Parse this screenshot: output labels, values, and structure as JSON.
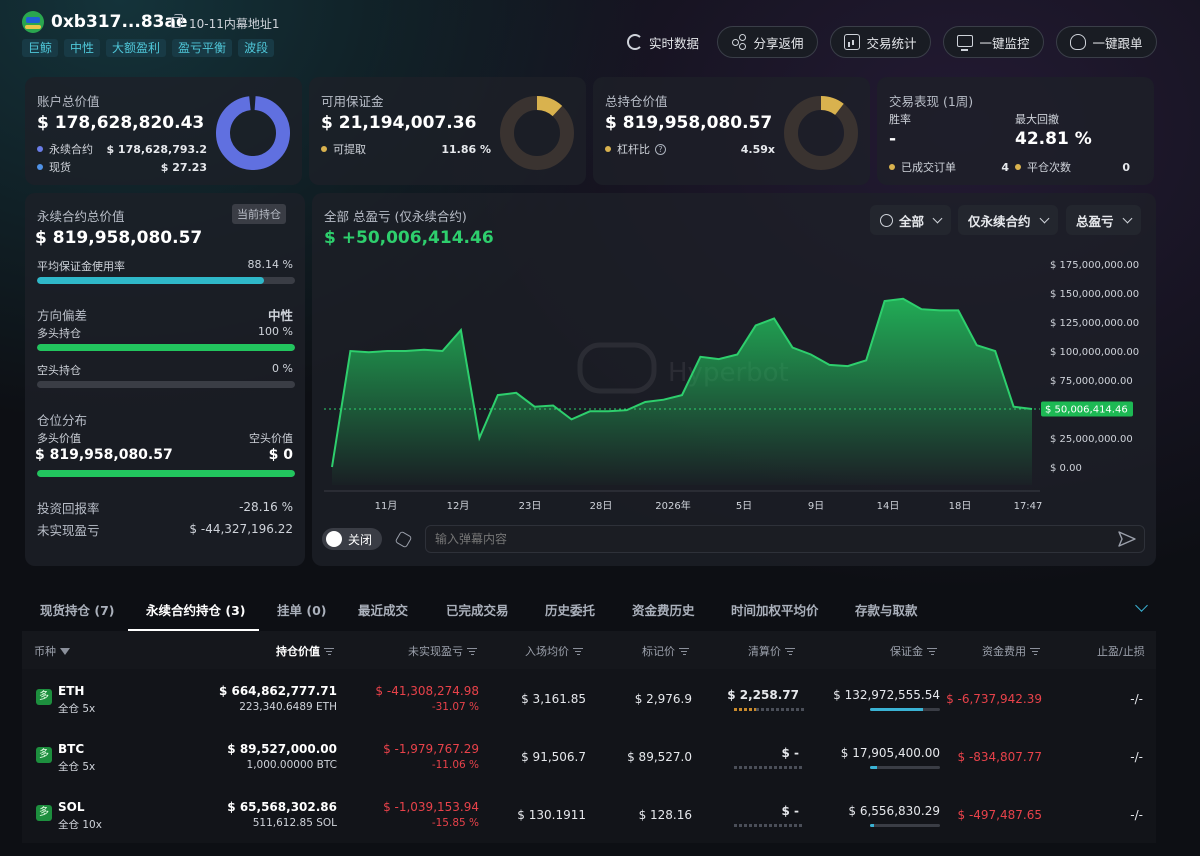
{
  "header": {
    "address": "0xb317...83ae",
    "note": "10-11内幕地址1",
    "tags": [
      "巨鲸",
      "中性",
      "大额盈利",
      "盈亏平衡",
      "波段"
    ],
    "buttons": {
      "realtime": "实时数据",
      "share": "分享返佣",
      "stats": "交易统计",
      "monitor": "一键监控",
      "copy_trade": "一键跟单"
    }
  },
  "cards": {
    "account": {
      "title": "账户总价值",
      "value": "$ 178,628,820.43",
      "rows": [
        {
          "label": "永续合约",
          "value": "$ 178,628,793.2"
        },
        {
          "label": "现货",
          "value": "$ 27.23"
        }
      ]
    },
    "margin": {
      "title": "可用保证金",
      "value": "$ 21,194,007.36",
      "row_label": "可提取",
      "row_value": "11.86 %",
      "ratio": 0.1186
    },
    "position": {
      "title": "总持仓价值",
      "value": "$ 819,958,080.57",
      "row_label": "杠杆比",
      "row_value": "4.59x",
      "ratio": 0.105
    },
    "performance": {
      "title": "交易表现 (1周)",
      "winrate_label": "胜率",
      "winrate_value": "-",
      "drawdown_label": "最大回撤",
      "drawdown_value": "42.81 %",
      "orders_label": "已成交订单",
      "orders_value": "4",
      "close_label": "平仓次数",
      "close_value": "0"
    }
  },
  "perp_panel": {
    "title": "永续合约总价值",
    "badge": "当前持仓",
    "value": "$ 819,958,080.57",
    "margin_usage_label": "平均保证金使用率",
    "margin_usage_value": "88.14 %",
    "margin_usage_ratio": 0.8814,
    "bias_label": "方向偏差",
    "bias_value": "中性",
    "long_label": "多头持仓",
    "long_value": "100 %",
    "long_ratio": 1.0,
    "short_label": "空头持仓",
    "short_value": "0 %",
    "short_ratio": 0.0,
    "dist_label": "仓位分布",
    "long_value_label": "多头价值",
    "short_value_label": "空头价值",
    "long_amount": "$ 819,958,080.57",
    "short_amount": "$ 0",
    "roi_label": "投资回报率",
    "roi_value": "-28.16 %",
    "upnl_label": "未实现盈亏",
    "upnl_value": "$ -44,327,196.22"
  },
  "chart_panel": {
    "title": "全部 总盈亏 (仅永续合约)",
    "value": "$ +50,006,414.46",
    "filters": [
      "全部",
      "仅永续合约",
      "总盈亏"
    ],
    "watermark": "Hyperbot",
    "toggle_label": "关闭",
    "danmaku_placeholder": "输入弹幕内容"
  },
  "chart_data": {
    "type": "area",
    "title": "全部 总盈亏 (仅永续合约)",
    "y_ticks": [
      "$ 175,000,000.00",
      "$ 150,000,000.00",
      "$ 125,000,000.00",
      "$ 100,000,000.00",
      "$ 75,000,000.00",
      "$ 50,000,000.00",
      "$ 25,000,000.00",
      "$ 0.00"
    ],
    "x_ticks": [
      "11月",
      "12月",
      "23日",
      "28日",
      "2026年",
      "5日",
      "9日",
      "14日",
      "18日",
      "17:47"
    ],
    "ylim": [
      0,
      175000000
    ],
    "current_label": "$ 50,006,414.46",
    "current_value": 50006414.46,
    "color": "#2ecf6d",
    "values": [
      0,
      100000000,
      99000000,
      100000000,
      100000000,
      101000000,
      100000000,
      118000000,
      25000000,
      62000000,
      64000000,
      52000000,
      53000000,
      41000000,
      48000000,
      48000000,
      49000000,
      56000000,
      58000000,
      62000000,
      95000000,
      93000000,
      97000000,
      122000000,
      128000000,
      103000000,
      97000000,
      88000000,
      87000000,
      92000000,
      143000000,
      145000000,
      136000000,
      135000000,
      135000000,
      105000000,
      100000000,
      52000000,
      50006414
    ]
  },
  "tabs": [
    "现货持仓 (7)",
    "永续合约持仓 (3)",
    "挂单 (0)",
    "最近成交",
    "已完成交易",
    "历史委托",
    "资金费历史",
    "时间加权平均价",
    "存款与取款"
  ],
  "table": {
    "columns": [
      "币种",
      "持仓价值",
      "未实现盈亏",
      "入场均价",
      "标记价",
      "清算价",
      "保证金",
      "资金费用",
      "止盈/止损"
    ],
    "side_label": "多",
    "rows": [
      {
        "coin": "ETH",
        "mode": "全仓 5x",
        "value": "$ 664,862,777.71",
        "size": "223,340.6489 ETH",
        "pnl": "$ -41,308,274.98",
        "pnl_pct": "-31.07 %",
        "entry": "$ 3,161.85",
        "mark": "$ 2,976.9",
        "liq": "$ 2,258.77",
        "margin": "$ 132,972,555.54",
        "margin_ratio": 0.75,
        "funding": "$ -6,737,942.39",
        "tpsl": "-/-"
      },
      {
        "coin": "BTC",
        "mode": "全仓 5x",
        "value": "$ 89,527,000.00",
        "size": "1,000.00000 BTC",
        "pnl": "$ -1,979,767.29",
        "pnl_pct": "-11.06 %",
        "entry": "$ 91,506.7",
        "mark": "$ 89,527.0",
        "liq": "$ -",
        "margin": "$ 17,905,400.00",
        "margin_ratio": 0.1,
        "funding": "$ -834,807.77",
        "tpsl": "-/-"
      },
      {
        "coin": "SOL",
        "mode": "全仓 10x",
        "value": "$ 65,568,302.86",
        "size": "511,612.85 SOL",
        "pnl": "$ -1,039,153.94",
        "pnl_pct": "-15.85 %",
        "entry": "$ 130.1911",
        "mark": "$ 128.16",
        "liq": "$ -",
        "margin": "$ 6,556,830.29",
        "margin_ratio": 0.05,
        "funding": "$ -497,487.65",
        "tpsl": "-/-"
      }
    ]
  }
}
